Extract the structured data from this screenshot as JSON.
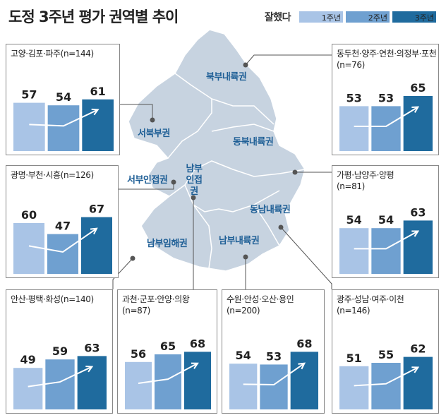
{
  "title": "도정 3주년 평가 권역별 추이",
  "legend": {
    "lead": "잘했다",
    "items": [
      {
        "label": "1주년",
        "color": "#a9c4e6"
      },
      {
        "label": "2주년",
        "color": "#6fa0d0"
      },
      {
        "label": "3주년",
        "color": "#1f6b9e"
      }
    ]
  },
  "colors": {
    "year1": "#a9c4e6",
    "year2": "#6fa0d0",
    "year3": "#1f6b9e",
    "map": "#c7d3e0",
    "region_text": "#1f5f96"
  },
  "map_regions": [
    {
      "name": "북부내륙권"
    },
    {
      "name": "서북부권"
    },
    {
      "name": "동북내륙권"
    },
    {
      "name": "서부인접권"
    },
    {
      "name": "남부인접권"
    },
    {
      "name": "동남내륙권"
    },
    {
      "name": "남부임해권"
    },
    {
      "name": "남부내륙권"
    }
  ],
  "chart_data": [
    {
      "type": "bar",
      "title": "고양·김포·파주(n=144)",
      "categories": [
        "1주년",
        "2주년",
        "3주년"
      ],
      "values": [
        57,
        54,
        61
      ]
    },
    {
      "type": "bar",
      "title": "동두천·양주·연천·의정부·포천(n=76)",
      "categories": [
        "1주년",
        "2주년",
        "3주년"
      ],
      "values": [
        53,
        53,
        65
      ]
    },
    {
      "type": "bar",
      "title": "광명·부천·시흥(n=126)",
      "categories": [
        "1주년",
        "2주년",
        "3주년"
      ],
      "values": [
        60,
        47,
        67
      ]
    },
    {
      "type": "bar",
      "title": "가평·남양주·양평(n=81)",
      "categories": [
        "1주년",
        "2주년",
        "3주년"
      ],
      "values": [
        54,
        54,
        63
      ]
    },
    {
      "type": "bar",
      "title": "안산·평택·화성(n=140)",
      "categories": [
        "1주년",
        "2주년",
        "3주년"
      ],
      "values": [
        49,
        59,
        63
      ]
    },
    {
      "type": "bar",
      "title": "과천·군포·안양·의왕(n=87)",
      "categories": [
        "1주년",
        "2주년",
        "3주년"
      ],
      "values": [
        56,
        65,
        68
      ]
    },
    {
      "type": "bar",
      "title": "수원·안성·오산·용인(n=200)",
      "categories": [
        "1주년",
        "2주년",
        "3주년"
      ],
      "values": [
        54,
        53,
        68
      ]
    },
    {
      "type": "bar",
      "title": "광주·성남·여주·이천(n=146)",
      "categories": [
        "1주년",
        "2주년",
        "3주년"
      ],
      "values": [
        51,
        55,
        62
      ]
    }
  ]
}
